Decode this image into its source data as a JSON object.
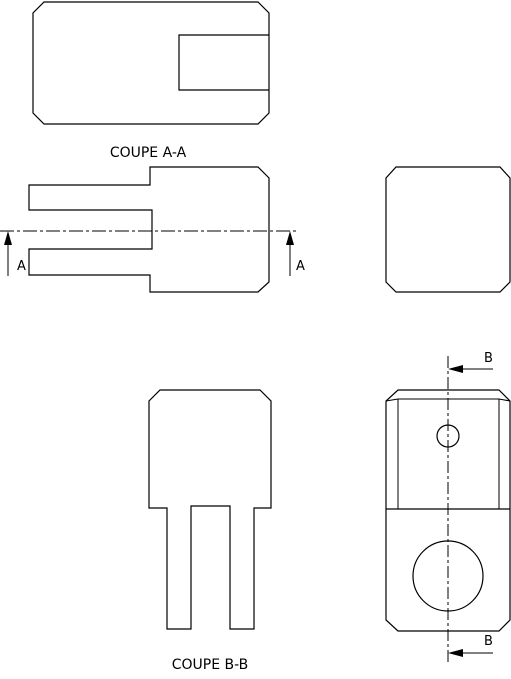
{
  "labels": {
    "section_aa_title": "COUPE A-A",
    "section_bb_title": "COUPE B-B",
    "arrow_a_left": "A",
    "arrow_a_right": "A",
    "arrow_b_top": "B",
    "arrow_b_bottom": "B"
  }
}
